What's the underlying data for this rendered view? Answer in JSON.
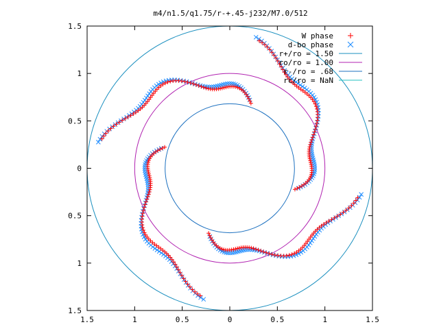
{
  "chart_data": {
    "type": "scatter",
    "title": "m4/n1.5/q1.75/r-+.45-j232/M7.0/512",
    "xlabel": "",
    "ylabel": "",
    "xlim": [
      -1.5,
      1.5
    ],
    "ylim": [
      -1.5,
      1.5
    ],
    "x_ticks": [
      -1.5,
      -1,
      -0.5,
      0,
      0.5,
      1,
      1.5
    ],
    "y_ticks": [
      -1.5,
      -1,
      -0.5,
      0,
      0.5,
      1,
      1.5
    ],
    "x_tick_labels": [
      "1.5",
      "1",
      "0.5",
      "0",
      "0.5",
      "1",
      "1.5"
    ],
    "y_tick_labels": [
      "1.5",
      "1",
      "0.5",
      "0",
      "0.5",
      "1",
      "1.5"
    ],
    "grid": false,
    "legend_position": "top-right",
    "series": [
      {
        "name": "W phase",
        "marker": "plus",
        "color": "#ff0000"
      },
      {
        "name": "d-bo phase",
        "marker": "cross",
        "color": "#1e8cff"
      },
      {
        "name": "r+/ro = 1.50",
        "type": "circle",
        "radius": 1.5,
        "color": "#1a8fbf"
      },
      {
        "name": "ro/ro = 1.00",
        "type": "circle",
        "radius": 1.0,
        "color": "#b020b0"
      },
      {
        "name": "r-/ro = .68",
        "type": "circle",
        "radius": 0.68,
        "color": "#1a6fbf"
      },
      {
        "name": "rc/ro = NaN",
        "type": "circle",
        "radius": null,
        "color": "#20c0c0"
      }
    ],
    "spiral_arms": {
      "count": 4,
      "start_angles_deg": [
        72,
        162,
        252,
        342
      ],
      "radius_range": [
        0.72,
        1.32
      ]
    }
  }
}
